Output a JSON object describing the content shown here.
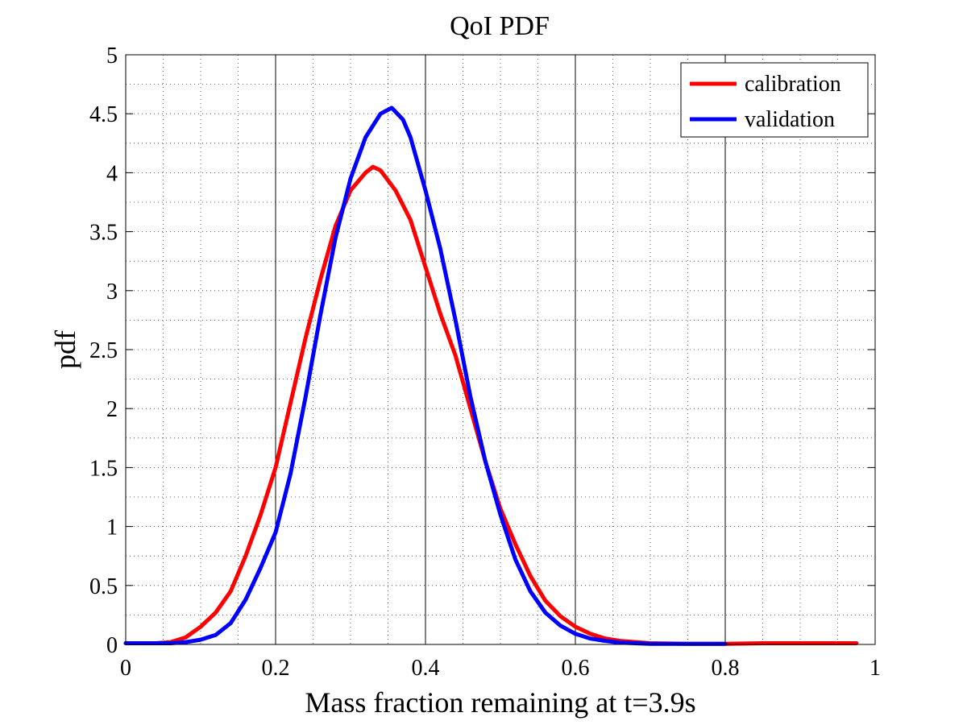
{
  "chart_data": {
    "type": "line",
    "title": "QoI PDF",
    "xlabel": "Mass fraction remaining at t=3.9s",
    "ylabel": "pdf",
    "xlim": [
      0,
      1
    ],
    "ylim": [
      0,
      5
    ],
    "xticks": [
      0,
      0.2,
      0.4,
      0.6,
      0.8,
      1
    ],
    "xtick_labels": [
      "0",
      "0.2",
      "0.4",
      "0.6",
      "0.8",
      "1"
    ],
    "yticks": [
      0,
      0.5,
      1,
      1.5,
      2,
      2.5,
      3,
      3.5,
      4,
      4.5,
      5
    ],
    "ytick_labels": [
      "0",
      "0.5",
      "1",
      "1.5",
      "2",
      "2.5",
      "3",
      "3.5",
      "4",
      "4.5",
      "5"
    ],
    "grid": true,
    "minor_grid": true,
    "legend_position": "top-right",
    "series": [
      {
        "name": "calibration",
        "color": "#ff0000",
        "x": [
          0,
          0.04,
          0.06,
          0.08,
          0.1,
          0.12,
          0.14,
          0.16,
          0.18,
          0.2,
          0.22,
          0.24,
          0.26,
          0.28,
          0.3,
          0.32,
          0.33,
          0.34,
          0.36,
          0.38,
          0.4,
          0.42,
          0.44,
          0.46,
          0.48,
          0.5,
          0.52,
          0.54,
          0.56,
          0.58,
          0.6,
          0.62,
          0.64,
          0.66,
          0.7,
          0.75,
          0.8,
          0.85,
          0.9,
          0.975
        ],
        "y": [
          0.01,
          0.01,
          0.02,
          0.06,
          0.15,
          0.27,
          0.45,
          0.75,
          1.1,
          1.5,
          2.05,
          2.6,
          3.1,
          3.55,
          3.85,
          4.0,
          4.05,
          4.02,
          3.85,
          3.6,
          3.2,
          2.8,
          2.45,
          2.0,
          1.55,
          1.15,
          0.85,
          0.58,
          0.37,
          0.24,
          0.15,
          0.09,
          0.05,
          0.03,
          0.01,
          0.005,
          0.005,
          0.01,
          0.01,
          0.01
        ]
      },
      {
        "name": "validation",
        "color": "#0000ff",
        "x": [
          0,
          0.06,
          0.08,
          0.1,
          0.12,
          0.14,
          0.16,
          0.18,
          0.2,
          0.22,
          0.24,
          0.26,
          0.28,
          0.3,
          0.32,
          0.34,
          0.355,
          0.37,
          0.38,
          0.4,
          0.42,
          0.44,
          0.46,
          0.48,
          0.5,
          0.52,
          0.54,
          0.56,
          0.58,
          0.6,
          0.62,
          0.64,
          0.66,
          0.7,
          0.75,
          0.8
        ],
        "y": [
          0.01,
          0.01,
          0.02,
          0.04,
          0.08,
          0.18,
          0.38,
          0.65,
          0.95,
          1.45,
          2.1,
          2.8,
          3.45,
          3.95,
          4.3,
          4.5,
          4.55,
          4.45,
          4.3,
          3.85,
          3.35,
          2.75,
          2.1,
          1.55,
          1.1,
          0.72,
          0.45,
          0.27,
          0.16,
          0.09,
          0.05,
          0.03,
          0.015,
          0.005,
          0.005,
          0.005
        ]
      }
    ]
  }
}
